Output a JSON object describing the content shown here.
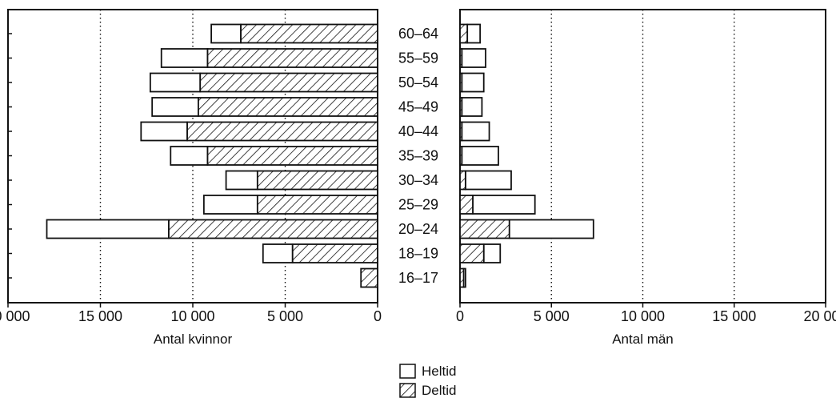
{
  "chart_data": {
    "type": "bar",
    "orientation": "horizontal-population-pyramid",
    "categories": [
      "60–64",
      "55–59",
      "50–54",
      "45–49",
      "40–44",
      "35–39",
      "30–34",
      "25–29",
      "20–24",
      "18–19",
      "16–17"
    ],
    "panels": [
      {
        "xlabel": "Antal kvinnor",
        "xlim": [
          20000,
          0
        ],
        "ticks": [
          20000,
          15000,
          10000,
          5000,
          0
        ],
        "tick_labels": [
          "20 000",
          "15 000",
          "10 000",
          "5 000",
          "0"
        ],
        "series": [
          {
            "name": "Deltid",
            "values": [
              7400,
              9200,
              9600,
              9700,
              10300,
              9200,
              6500,
              6500,
              11300,
              4600,
              900
            ]
          },
          {
            "name": "Heltid",
            "values": [
              1600,
              2500,
              2700,
              2500,
              2500,
              2000,
              1700,
              2900,
              6600,
              1600,
              0
            ]
          }
        ]
      },
      {
        "xlabel": "Antal män",
        "xlim": [
          0,
          20000
        ],
        "ticks": [
          0,
          5000,
          10000,
          15000,
          20000
        ],
        "tick_labels": [
          "0",
          "5 000",
          "10 000",
          "15 000",
          "20 000"
        ],
        "series": [
          {
            "name": "Deltid",
            "values": [
              400,
              100,
              100,
              100,
              100,
              100,
              300,
              700,
              2700,
              1300,
              200
            ]
          },
          {
            "name": "Heltid",
            "values": [
              700,
              1300,
              1200,
              1100,
              1500,
              2000,
              2500,
              3400,
              4600,
              900,
              100
            ]
          }
        ]
      }
    ],
    "grid": "vertical-dotted",
    "legend": [
      {
        "label": "Heltid",
        "pattern": "plain"
      },
      {
        "label": "Deltid",
        "pattern": "hatched"
      }
    ],
    "legend_position": "bottom-center"
  }
}
